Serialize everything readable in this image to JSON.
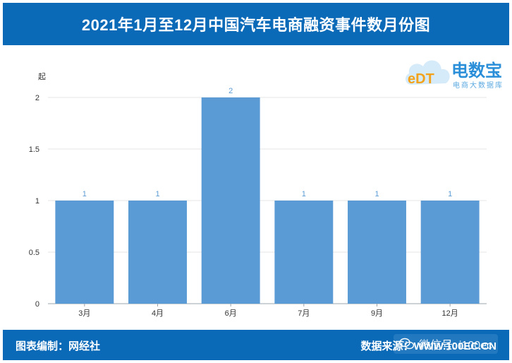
{
  "header": {
    "title": "2021年1月至12月中国汽车电商融资事件数月份图"
  },
  "logo": {
    "brand": "电数宝",
    "sub": "电商大数据库",
    "mark": "eDT"
  },
  "footer": {
    "left": "图表编制：网经社",
    "right": "数据来源：WWW.100EC.CN",
    "watermark": "微信号: i100ec"
  },
  "chart_data": {
    "type": "bar",
    "title": "",
    "xlabel": "",
    "ylabel": "起",
    "categories": [
      "3月",
      "4月",
      "6月",
      "7月",
      "9月",
      "12月"
    ],
    "values": [
      1,
      1,
      2,
      1,
      1,
      1
    ],
    "ylim": [
      0,
      2
    ],
    "yticks": [
      "0",
      "0.5",
      "1",
      "1.5",
      "2"
    ],
    "bar_color": "#5b9bd5",
    "label_color": "#5b9bd5",
    "grid": true,
    "legend": "none"
  }
}
